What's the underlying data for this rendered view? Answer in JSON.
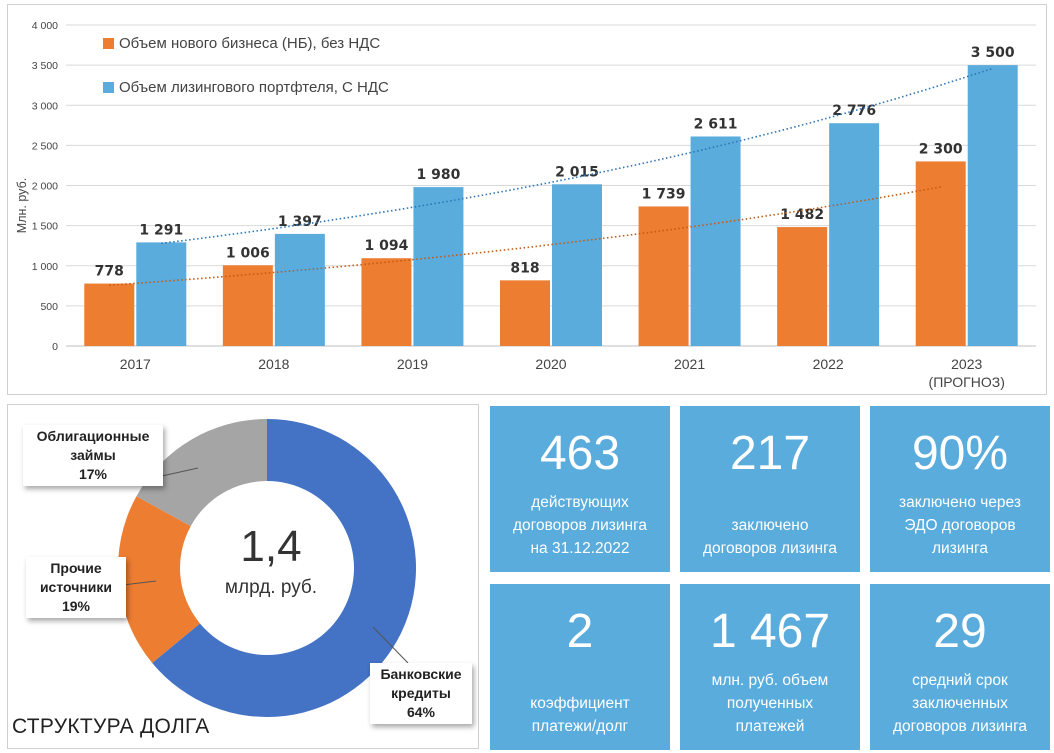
{
  "chart_data": {
    "type": "bar",
    "categories": [
      "2017",
      "2018",
      "2019",
      "2020",
      "2021",
      "2022",
      "2023"
    ],
    "category_sublabels": [
      "",
      "",
      "",
      "",
      "",
      "",
      "(ПРОГНОЗ)"
    ],
    "series": [
      {
        "name": "Объем нового бизнеса (НБ), без НДС",
        "color": "#ed7d31",
        "values": [
          778,
          1006,
          1094,
          818,
          1739,
          1482,
          2300
        ],
        "labels": [
          "778",
          "1 006",
          "1 094",
          "818",
          "1 739",
          "1 482",
          "2 300"
        ]
      },
      {
        "name": "Объем лизингового портфтеля, С НДС",
        "color": "#5aacdd",
        "values": [
          1291,
          1397,
          1980,
          2015,
          2611,
          2776,
          3500
        ],
        "labels": [
          "1 291",
          "1 397",
          "1 980",
          "2 015",
          "2 611",
          "2 776",
          "3 500"
        ]
      }
    ],
    "trendlines": [
      {
        "series": 0,
        "type": "exponential",
        "style": "dotted",
        "color": "#c55a11"
      },
      {
        "series": 1,
        "type": "exponential",
        "style": "dotted",
        "color": "#2e75b6"
      }
    ],
    "ylabel": "Млн. руб.",
    "ylim": [
      0,
      4000
    ],
    "yticks": [
      0,
      500,
      1000,
      1500,
      2000,
      2500,
      3000,
      3500,
      4000
    ],
    "ytick_labels": [
      "0",
      "500",
      "1 000",
      "1 500",
      "2 000",
      "2 500",
      "3 000",
      "3 500",
      "4 000"
    ],
    "grid": true,
    "legend_position": "top-left"
  },
  "debt": {
    "chart_data": {
      "type": "pie",
      "title": "СТРУКТУРА ДОЛГА",
      "center_value": "1,4",
      "center_unit": "млрд. руб.",
      "slices": [
        {
          "name": "Банковские кредиты",
          "value": 64,
          "label": "64%",
          "color": "#4472c4"
        },
        {
          "name": "Прочие источники",
          "value": 19,
          "label": "19%",
          "color": "#ed7d31"
        },
        {
          "name": "Облигационные займы",
          "value": 17,
          "label": "17%",
          "color": "#a5a5a5"
        }
      ]
    },
    "callouts": {
      "bonds": {
        "line1": "Облигационные",
        "line2": "займы",
        "pct": "17%"
      },
      "other": {
        "line1": "Прочие",
        "line2": "источники",
        "pct": "19%"
      },
      "bank": {
        "line1": "Банковские",
        "line2": "кредиты",
        "pct": "64%"
      }
    }
  },
  "tiles": [
    {
      "number": "463",
      "desc": [
        "действующих",
        "договоров лизинга",
        "на 31.12.2022"
      ]
    },
    {
      "number": "217",
      "desc": [
        "заключено",
        "договоров лизинга"
      ]
    },
    {
      "number": "90%",
      "desc": [
        "заключено через",
        "ЭДО договоров",
        "лизинга"
      ]
    },
    {
      "number": "2",
      "desc": [
        "коэффициент",
        "платежи/долг"
      ]
    },
    {
      "number": "1 467",
      "desc": [
        "млн. руб. объем",
        "полученных",
        "платежей"
      ]
    },
    {
      "number": "29",
      "desc": [
        "средний срок",
        "заключенных",
        "договоров лизинга"
      ]
    }
  ],
  "colors": {
    "tile_bg": "#5aacdd",
    "orange": "#ed7d31",
    "blue": "#5aacdd",
    "donut_blue": "#4472c4",
    "grey": "#a5a5a5"
  }
}
